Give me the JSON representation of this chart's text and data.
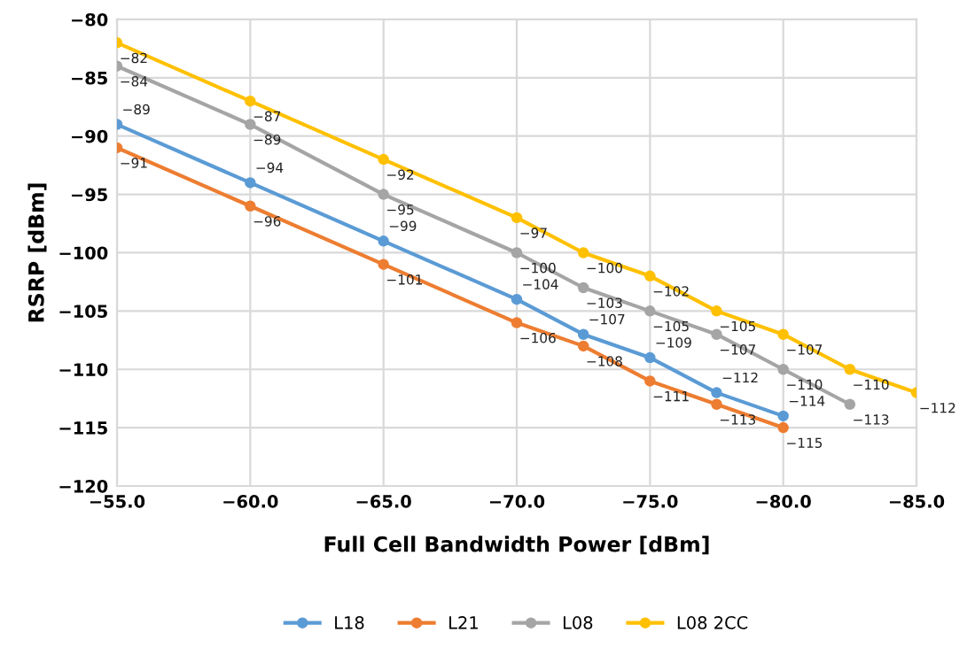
{
  "chart_data": {
    "type": "line",
    "xlabel": "Full Cell Bandwidth Power [dBm]",
    "ylabel": "RSRP [dBm]",
    "xlim": [
      -55,
      -85
    ],
    "xticks": [
      {
        "value": -55,
        "label": "−55.0"
      },
      {
        "value": -60,
        "label": "−60.0"
      },
      {
        "value": -65,
        "label": "−65.0"
      },
      {
        "value": -70,
        "label": "−70.0"
      },
      {
        "value": -75,
        "label": "−75.0"
      },
      {
        "value": -80,
        "label": "−80.0"
      },
      {
        "value": -85,
        "label": "−85.0"
      }
    ],
    "ylim": [
      -120,
      -80
    ],
    "yticks": [
      {
        "value": -120,
        "label": "−120"
      },
      {
        "value": -115,
        "label": "−115"
      },
      {
        "value": -110,
        "label": "−110"
      },
      {
        "value": -105,
        "label": "−105"
      },
      {
        "value": -100,
        "label": "−100"
      },
      {
        "value": -95,
        "label": "−95"
      },
      {
        "value": -90,
        "label": "−90"
      },
      {
        "value": -85,
        "label": "−85"
      },
      {
        "value": -80,
        "label": "−80"
      }
    ],
    "grid": true,
    "legend": "bottom",
    "marker": "circle",
    "line_style": "solid",
    "series": [
      {
        "name": "L18",
        "color": "#5b9bd5",
        "x": [
          -55,
          -60,
          -65,
          -70,
          -72.5,
          -75,
          -77.5,
          -80
        ],
        "values": [
          -89,
          -94,
          -99,
          -104,
          -107,
          -109,
          -112,
          -114
        ],
        "value_labels": [
          "−89",
          "−94",
          "−99",
          "−104",
          "−107",
          "−109",
          "−112",
          "−114"
        ]
      },
      {
        "name": "L21",
        "color": "#ed7d31",
        "x": [
          -55,
          -60,
          -65,
          -70,
          -72.5,
          -75,
          -77.5,
          -80
        ],
        "values": [
          -91,
          -96,
          -101,
          -106,
          -108,
          -111,
          -113,
          -115
        ],
        "value_labels": [
          "−91",
          "−96",
          "−101",
          "−106",
          "−108",
          "−111",
          "−113",
          "−115"
        ]
      },
      {
        "name": "L08",
        "color": "#a5a5a5",
        "x": [
          -55,
          -60,
          -65,
          -70,
          -72.5,
          -75,
          -77.5,
          -80,
          -82.5
        ],
        "values": [
          -84,
          -89,
          -95,
          -100,
          -103,
          -105,
          -107,
          -110,
          -113
        ],
        "value_labels": [
          "−84",
          "−89",
          "−95",
          "−100",
          "−103",
          "−105",
          "−107",
          "−110",
          "−113"
        ]
      },
      {
        "name": "L08 2CC",
        "color": "#ffc000",
        "x": [
          -55,
          -60,
          -65,
          -70,
          -72.5,
          -75,
          -77.5,
          -80,
          -82.5,
          -85
        ],
        "values": [
          -82,
          -87,
          -92,
          -97,
          -100,
          -102,
          -105,
          -107,
          -110,
          -112
        ],
        "value_labels": [
          "−82",
          "−87",
          "−92",
          "−97",
          "−100",
          "−102",
          "−105",
          "−107",
          "−110",
          "−112"
        ]
      }
    ]
  }
}
